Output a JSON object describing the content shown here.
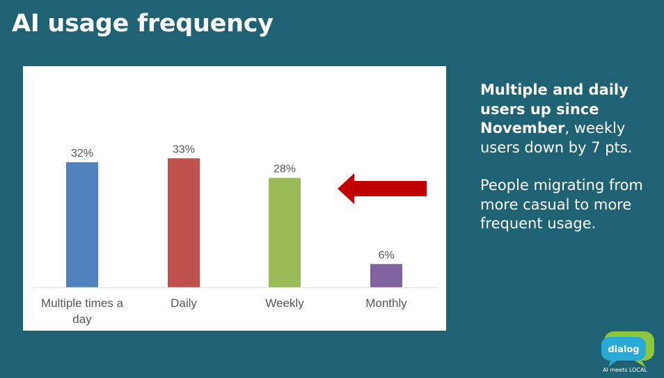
{
  "page": {
    "title": "AI usage frequency"
  },
  "chart_data": {
    "type": "bar",
    "categories": [
      "Multiple times a day",
      "Daily",
      "Weekly",
      "Monthly"
    ],
    "category_lines": [
      [
        "Multiple times a",
        "day"
      ],
      [
        "Daily"
      ],
      [
        "Weekly"
      ],
      [
        "Monthly"
      ]
    ],
    "values": [
      32,
      33,
      28,
      6
    ],
    "value_labels": [
      "32%",
      "33%",
      "28%",
      "6%"
    ],
    "colors": [
      "#4f81bd",
      "#c0504d",
      "#9bbb59",
      "#8064a2"
    ],
    "ylim": [
      0,
      40
    ],
    "grid": false,
    "legend": "none"
  },
  "arrow": {
    "color": "#c00000",
    "direction": "left"
  },
  "commentary": {
    "p1_bold": "Multiple and daily users up since November",
    "p1_rest": ", weekly users down by 7 pts.",
    "p2": "People migrating from more casual to more frequent usage."
  },
  "logo": {
    "text": "dialog",
    "tagline": "AI meets LOCAL",
    "colors": {
      "back_bubble": "#8cc63f",
      "front_bubble": "#29a9d6"
    }
  }
}
